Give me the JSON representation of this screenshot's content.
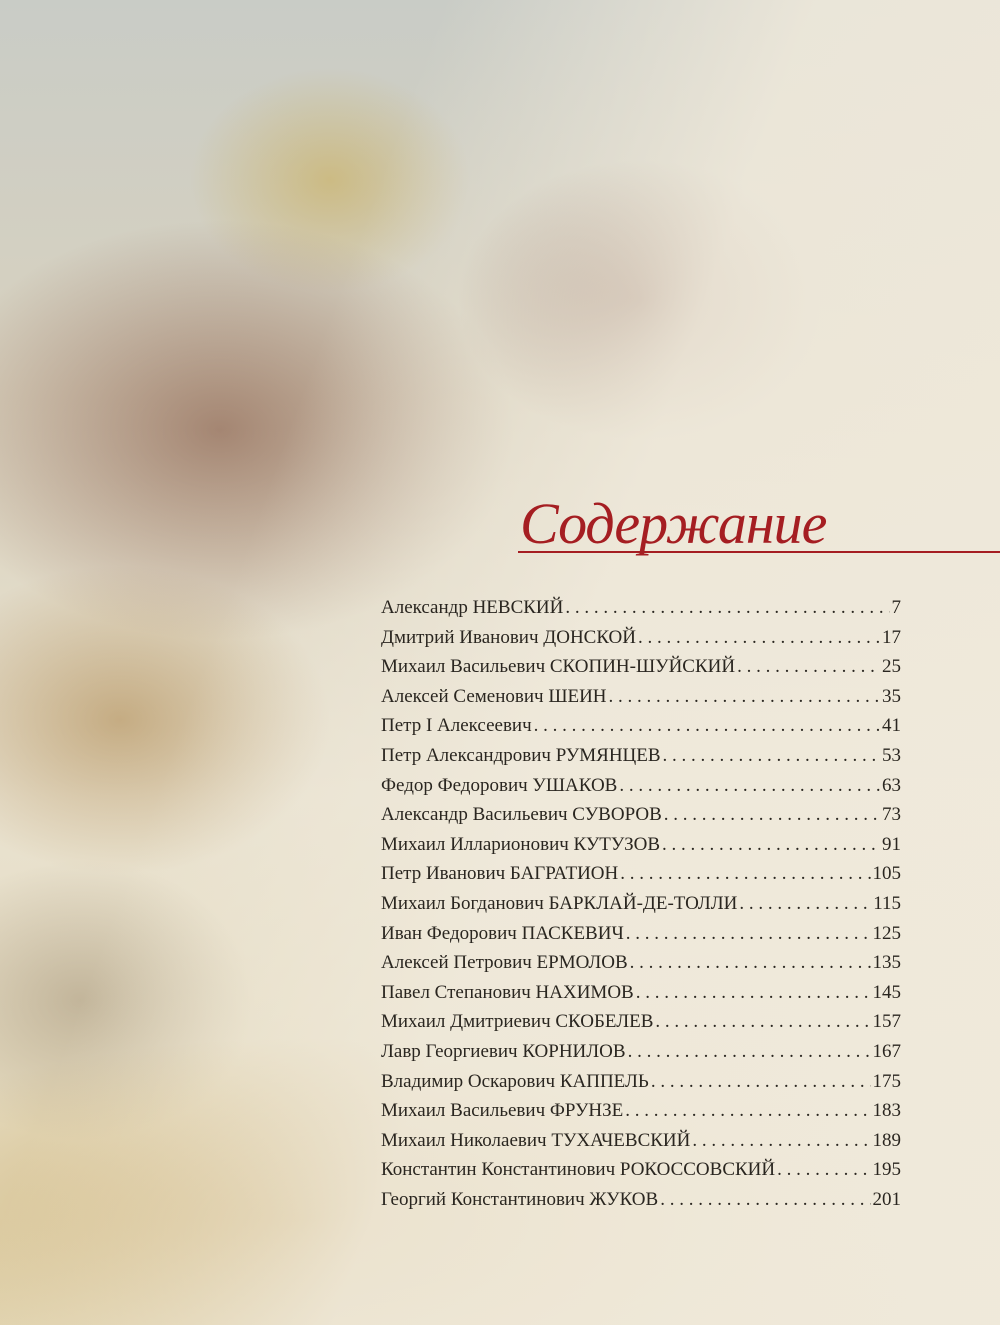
{
  "title": "Содержание",
  "entries": [
    {
      "name": "Александр НЕВСКИЙ",
      "page": "7"
    },
    {
      "name": "Дмитрий Иванович ДОНСКОЙ",
      "page": "17"
    },
    {
      "name": "Михаил Васильевич СКОПИН-ШУЙСКИЙ",
      "page": "25"
    },
    {
      "name": "Алексей Семенович ШЕИН",
      "page": "35"
    },
    {
      "name": "Петр I Алексеевич",
      "page": "41"
    },
    {
      "name": "Петр Александрович РУМЯНЦЕВ",
      "page": "53"
    },
    {
      "name": "Федор Федорович УШАКОВ",
      "page": "63"
    },
    {
      "name": "Александр Васильевич СУВОРОВ",
      "page": "73"
    },
    {
      "name": "Михаил Илларионович КУТУЗОВ",
      "page": "91"
    },
    {
      "name": "Петр Иванович БАГРАТИОН",
      "page": "105"
    },
    {
      "name": "Михаил Богданович БАРКЛАЙ-ДЕ-ТОЛЛИ",
      "page": "115"
    },
    {
      "name": "Иван Федорович ПАСКЕВИЧ",
      "page": "125"
    },
    {
      "name": "Алексей Петрович ЕРМОЛОВ",
      "page": "135"
    },
    {
      "name": "Павел Степанович НАХИМОВ",
      "page": "145"
    },
    {
      "name": "Михаил Дмитриевич СКОБЕЛЕВ",
      "page": "157"
    },
    {
      "name": "Лавр Георгиевич КОРНИЛОВ",
      "page": "167"
    },
    {
      "name": "Владимир Оскарович КАППЕЛЬ",
      "page": "175"
    },
    {
      "name": "Михаил Васильевич ФРУНЗЕ",
      "page": "183"
    },
    {
      "name": "Михаил Николаевич ТУХАЧЕВСКИЙ",
      "page": "189"
    },
    {
      "name": "Константин Константинович РОКОССОВСКИЙ",
      "page": "195"
    },
    {
      "name": "Георгий Константинович ЖУКОВ",
      "page": "201"
    }
  ],
  "colors": {
    "title": "#a51e22",
    "text": "#2a2620"
  }
}
